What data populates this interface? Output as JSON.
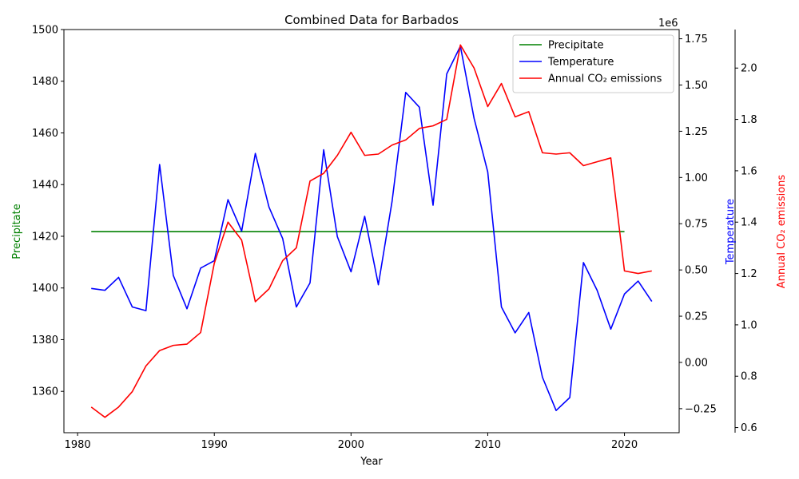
{
  "chart_data": {
    "type": "line",
    "title": "Combined Data for Barbados",
    "xlabel": "Year",
    "xlim": [
      1979,
      2024
    ],
    "xticks": [
      1980,
      1990,
      2000,
      2010,
      2020
    ],
    "legend_position": "top-right",
    "axes": [
      {
        "id": "left",
        "label": "Precipitate",
        "color": "#008000",
        "ylim": [
          1344,
          1500
        ],
        "ticks": [
          1360,
          1380,
          1400,
          1420,
          1440,
          1460,
          1480,
          1500
        ]
      },
      {
        "id": "right1",
        "label": "Temperature",
        "color": "#0000ff",
        "ylim": [
          -0.38,
          1.8
        ],
        "ticks": [
          -0.25,
          0.0,
          0.25,
          0.5,
          0.75,
          1.0,
          1.25,
          1.5,
          1.75
        ],
        "tick_labels": [
          "−0.25",
          "0.00",
          "0.25",
          "0.50",
          "0.75",
          "1.00",
          "1.25",
          "1.50",
          "1.75"
        ],
        "multiplier": "1e6"
      },
      {
        "id": "right2",
        "label": "Annual CO₂ emissions",
        "color": "#ff0000",
        "ylim": [
          0.58,
          2.15
        ],
        "ticks": [
          0.6,
          0.8,
          1.0,
          1.2,
          1.4,
          1.6,
          1.8,
          2.0
        ],
        "tick_labels": [
          "0.6",
          "0.8",
          "1.0",
          "1.2",
          "1.4",
          "1.6",
          "1.8",
          "2.0"
        ]
      }
    ],
    "series": [
      {
        "name": "Precipitate",
        "axis": "left",
        "color": "#008000",
        "x": [
          1981,
          2020
        ],
        "y": [
          1421.8,
          1421.8
        ]
      },
      {
        "name": "Temperature",
        "axis": "right1",
        "color": "#0000ff",
        "x": [
          1981,
          1982,
          1983,
          1984,
          1985,
          1986,
          1987,
          1988,
          1989,
          1990,
          1991,
          1992,
          1993,
          1994,
          1995,
          1996,
          1997,
          1998,
          1999,
          2000,
          2001,
          2002,
          2003,
          2004,
          2005,
          2006,
          2007,
          2008,
          2009,
          2010,
          2011,
          2012,
          2013,
          2014,
          2015,
          2016,
          2017,
          2018,
          2019,
          2020,
          2021,
          2022
        ],
        "y": [
          0.4,
          0.39,
          0.46,
          0.3,
          0.28,
          1.07,
          0.47,
          0.29,
          0.51,
          0.55,
          0.88,
          0.71,
          1.13,
          0.84,
          0.67,
          0.3,
          0.43,
          1.15,
          0.68,
          0.49,
          0.79,
          0.42,
          0.87,
          1.46,
          1.38,
          0.85,
          1.56,
          1.71,
          1.32,
          1.03,
          0.3,
          0.16,
          0.27,
          -0.08,
          -0.26,
          -0.19,
          0.54,
          0.39,
          0.18,
          0.37,
          0.44,
          0.33
        ]
      },
      {
        "name": "Annual CO₂ emissions",
        "axis": "right2",
        "color": "#ff0000",
        "x": [
          1981,
          1982,
          1983,
          1984,
          1985,
          1986,
          1987,
          1988,
          1989,
          1990,
          1991,
          1992,
          1993,
          1994,
          1995,
          1996,
          1997,
          1998,
          1999,
          2000,
          2001,
          2002,
          2003,
          2004,
          2005,
          2006,
          2007,
          2008,
          2009,
          2010,
          2011,
          2012,
          2013,
          2014,
          2015,
          2016,
          2017,
          2018,
          2019,
          2020,
          2021,
          2022
        ],
        "y": [
          0.68,
          0.64,
          0.68,
          0.74,
          0.84,
          0.9,
          0.92,
          0.925,
          0.97,
          1.24,
          1.4,
          1.33,
          1.09,
          1.14,
          1.25,
          1.3,
          1.56,
          1.59,
          1.66,
          1.75,
          1.66,
          1.665,
          1.7,
          1.72,
          1.765,
          1.775,
          1.8,
          2.09,
          2.0,
          1.85,
          1.94,
          1.81,
          1.83,
          1.67,
          1.665,
          1.67,
          1.62,
          1.635,
          1.65,
          1.21,
          1.2,
          1.21
        ]
      }
    ]
  }
}
